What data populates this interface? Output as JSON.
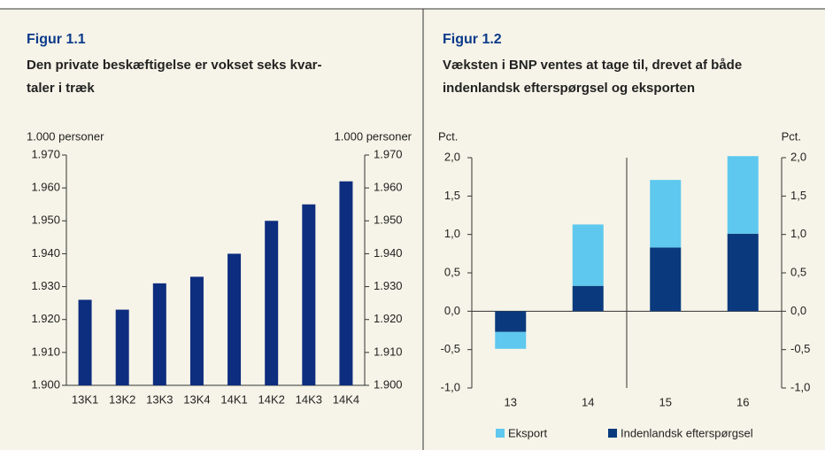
{
  "chart_data": [
    {
      "type": "bar",
      "title": "Figur 1.1",
      "subtitle": [
        "Den private beskæftigelse er vokset seks kvar-",
        "taler i træk"
      ],
      "ylabel": "1.000 personer",
      "y2label": "1.000 personer",
      "categories": [
        "13K1",
        "13K2",
        "13K3",
        "13K4",
        "14K1",
        "14K2",
        "14K3",
        "14K4"
      ],
      "values": [
        1926,
        1923,
        1931,
        1933,
        1940,
        1950,
        1955,
        1962
      ],
      "color": "#0d2d7f",
      "ylim": [
        1900,
        1970
      ],
      "yticks": [
        {
          "value": 1900,
          "label": "1.900"
        },
        {
          "value": 1910,
          "label": "1.910"
        },
        {
          "value": 1920,
          "label": "1.920"
        },
        {
          "value": 1930,
          "label": "1.930"
        },
        {
          "value": 1940,
          "label": "1.940"
        },
        {
          "value": 1950,
          "label": "1.950"
        },
        {
          "value": 1960,
          "label": "1.960"
        },
        {
          "value": 1970,
          "label": "1.970"
        }
      ],
      "y2lim": [
        1900,
        1970
      ],
      "y2ticks": [
        {
          "value": 1900,
          "label": "1.900"
        },
        {
          "value": 1910,
          "label": "1.910"
        },
        {
          "value": 1920,
          "label": "1.920"
        },
        {
          "value": 1930,
          "label": "1.930"
        },
        {
          "value": 1940,
          "label": "1.940"
        },
        {
          "value": 1950,
          "label": "1.950"
        },
        {
          "value": 1960,
          "label": "1.960"
        },
        {
          "value": 1970,
          "label": "1.970"
        }
      ]
    },
    {
      "type": "stacked_bar",
      "title": "Figur 1.2",
      "subtitle": [
        "Væksten i BNP ventes at tage til, drevet af både",
        "indenlandsk efterspørgsel og eksporten"
      ],
      "ylabel": "Pct.",
      "y2label": "Pct.",
      "categories": [
        "13",
        "14",
        "15",
        "16"
      ],
      "series": [
        {
          "name": "Indenlandsk efterspørgsel",
          "color": "#0a3a7d",
          "values": [
            -0.27,
            0.33,
            0.83,
            1.01
          ]
        },
        {
          "name": "Eksport",
          "color": "#5ec8ee",
          "values": [
            -0.22,
            0.8,
            0.88,
            1.01
          ]
        }
      ],
      "legend_order": [
        "Eksport",
        "Indenlandsk efterspørgsel"
      ],
      "ylim": [
        -1,
        2
      ],
      "yticks": [
        {
          "value": -1,
          "label": "-1,0"
        },
        {
          "value": -0.5,
          "label": "-0,5"
        },
        {
          "value": 0,
          "label": "0,0"
        },
        {
          "value": 0.5,
          "label": "0,5"
        },
        {
          "value": 1,
          "label": "1,0"
        },
        {
          "value": 1.5,
          "label": "1,5"
        },
        {
          "value": 2,
          "label": "2,0"
        }
      ],
      "y2lim": [
        -1,
        2
      ],
      "y2ticks": [
        {
          "value": -1,
          "label": "-1,0"
        },
        {
          "value": -0.5,
          "label": "-0,5"
        },
        {
          "value": 0,
          "label": "0,0"
        },
        {
          "value": 0.5,
          "label": "0,5"
        },
        {
          "value": 1,
          "label": "1,0"
        },
        {
          "value": 1.5,
          "label": "1,5"
        },
        {
          "value": 2,
          "label": "2,0"
        }
      ]
    }
  ]
}
